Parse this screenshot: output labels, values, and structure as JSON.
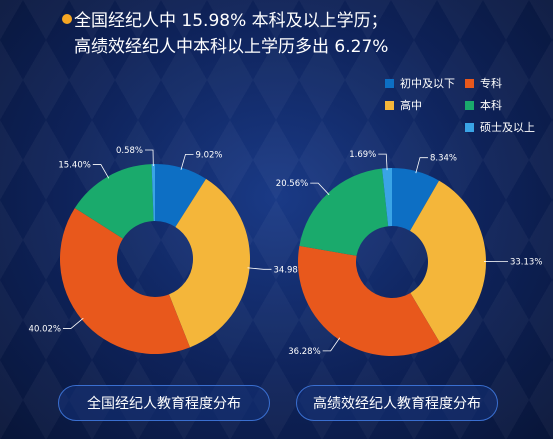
{
  "headline": {
    "line1": "全国经纪人中 15.98% 本科及以上学历；",
    "line2": "高绩效经纪人中本科以上学历多出 6.27%"
  },
  "colors": {
    "junior": "#0d6fc4",
    "college": "#e8581c",
    "highschool": "#f4b63a",
    "bachelor": "#1aaa6c",
    "master": "#3aa4e6"
  },
  "chart_data": [
    {
      "type": "pie",
      "donut": true,
      "title": "全国经纪人教育程度分布",
      "legend_position": "top-right",
      "categories": [
        "初中及以下",
        "专科",
        "高中",
        "本科",
        "硕士及以上"
      ],
      "slices": [
        {
          "category": "初中及以下",
          "value": 9.02,
          "label": "9.02%",
          "color": "#0d6fc4"
        },
        {
          "category": "高中",
          "value": 34.98,
          "label": "34.98%",
          "color": "#f4b63a"
        },
        {
          "category": "专科",
          "value": 40.02,
          "label": "40.02%",
          "color": "#e8581c"
        },
        {
          "category": "本科",
          "value": 15.4,
          "label": "15.40%",
          "color": "#1aaa6c"
        },
        {
          "category": "硕士及以上",
          "value": 0.58,
          "label": "0.58%",
          "color": "#3aa4e6"
        }
      ]
    },
    {
      "type": "pie",
      "donut": true,
      "title": "高绩效经纪人教育程度分布",
      "legend_position": "top-right",
      "categories": [
        "初中及以下",
        "专科",
        "高中",
        "本科",
        "硕士及以上"
      ],
      "slices": [
        {
          "category": "初中及以下",
          "value": 8.34,
          "label": "8.34%",
          "color": "#0d6fc4"
        },
        {
          "category": "高中",
          "value": 33.13,
          "label": "33.13%",
          "color": "#f4b63a"
        },
        {
          "category": "专科",
          "value": 36.28,
          "label": "36.28%",
          "color": "#e8581c"
        },
        {
          "category": "本科",
          "value": 20.56,
          "label": "20.56%",
          "color": "#1aaa6c"
        },
        {
          "category": "硕士及以上",
          "value": 1.69,
          "label": "1.69%",
          "color": "#3aa4e6"
        }
      ]
    }
  ],
  "legend": [
    {
      "label": "初中及以下",
      "color": "#0d6fc4"
    },
    {
      "label": "专科",
      "color": "#e8581c"
    },
    {
      "label": "高中",
      "color": "#f4b63a"
    },
    {
      "label": "本科",
      "color": "#1aaa6c"
    },
    {
      "label": "硕士及以上",
      "color": "#3aa4e6"
    }
  ]
}
